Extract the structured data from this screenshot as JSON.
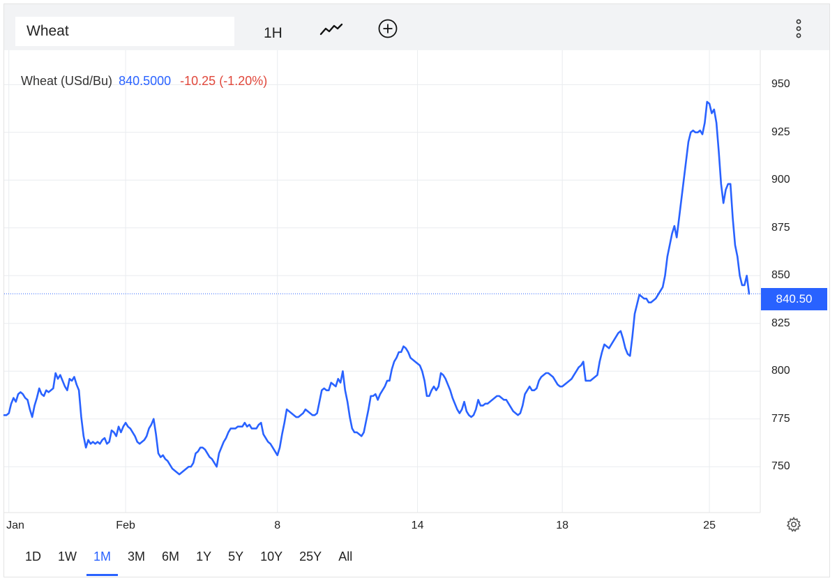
{
  "toolbar": {
    "symbol": "Wheat",
    "interval": "1H",
    "chart_type_icon": "line-chart-icon",
    "add_icon": "plus-circle-icon",
    "menu_icon": "vertical-dots-icon"
  },
  "legend": {
    "name": "Wheat (USd/Bu)",
    "value": "840.5000",
    "change": "-10.25 (-1.20%)"
  },
  "price_badge": "840.50",
  "settings_icon": "gear-icon",
  "colors": {
    "series": "#2962ff",
    "negative": "#e0473b",
    "grid": "#e9ecef",
    "toolbar_bg": "#f2f3f5"
  },
  "ranges": [
    {
      "label": "1D",
      "active": false
    },
    {
      "label": "1W",
      "active": false
    },
    {
      "label": "1M",
      "active": true
    },
    {
      "label": "3M",
      "active": false
    },
    {
      "label": "6M",
      "active": false
    },
    {
      "label": "1Y",
      "active": false
    },
    {
      "label": "5Y",
      "active": false
    },
    {
      "label": "10Y",
      "active": false
    },
    {
      "label": "25Y",
      "active": false
    },
    {
      "label": "All",
      "active": false
    }
  ],
  "chart_data": {
    "type": "line",
    "title": "",
    "xlabel": "",
    "ylabel": "",
    "grid": true,
    "ylim": [
      726,
      968
    ],
    "y_ticks": [
      750,
      775,
      800,
      825,
      850,
      875,
      900,
      925,
      950
    ],
    "x_tick_labels": [
      "Jan",
      "Feb",
      "8",
      "14",
      "18",
      "25"
    ],
    "x_tick_index": [
      2,
      52,
      117,
      177,
      239,
      302
    ],
    "last_price": 840.5,
    "series": [
      {
        "values": [
          777,
          777,
          778,
          783,
          786,
          784,
          788,
          789,
          788,
          786,
          785,
          780,
          776,
          782,
          786,
          791,
          788,
          787,
          790,
          789,
          790,
          791,
          799,
          796,
          798,
          795,
          792,
          790,
          796,
          795,
          797,
          793,
          790,
          776,
          766,
          760,
          764,
          762,
          763,
          762,
          763,
          762,
          764,
          765,
          762,
          763,
          769,
          768,
          766,
          771,
          768,
          771,
          773,
          771,
          770,
          768,
          766,
          763,
          762,
          763,
          764,
          766,
          770,
          772,
          775,
          767,
          757,
          755,
          756,
          754,
          753,
          751,
          749,
          748,
          747,
          746,
          747,
          748,
          749,
          750,
          750,
          752,
          757,
          758,
          760,
          760,
          759,
          757,
          755,
          754,
          752,
          750,
          757,
          760,
          763,
          765,
          768,
          770,
          770,
          770,
          771,
          771,
          771,
          773,
          771,
          772,
          770,
          770,
          770,
          772,
          773,
          767,
          765,
          763,
          762,
          760,
          758,
          756,
          760,
          767,
          773,
          780,
          779,
          778,
          777,
          776,
          776,
          777,
          778,
          780,
          779,
          778,
          777,
          777,
          778,
          784,
          790,
          791,
          790,
          790,
          794,
          793,
          792,
          796,
          794,
          800,
          790,
          784,
          776,
          770,
          768,
          768,
          767,
          766,
          768,
          774,
          780,
          787,
          787,
          788,
          785,
          788,
          790,
          792,
          795,
          795,
          801,
          805,
          807,
          810,
          810,
          813,
          812,
          810,
          807,
          806,
          805,
          804,
          803,
          800,
          795,
          787,
          787,
          790,
          792,
          790,
          792,
          799,
          798,
          796,
          793,
          790,
          786,
          783,
          780,
          778,
          780,
          784,
          779,
          777,
          776,
          777,
          780,
          785,
          782,
          782,
          783,
          783,
          784,
          785,
          786,
          787,
          787,
          786,
          785,
          785,
          783,
          781,
          779,
          778,
          777,
          778,
          782,
          788,
          790,
          792,
          790,
          790,
          791,
          795,
          797,
          798,
          799,
          799,
          798,
          797,
          795,
          793,
          792,
          792,
          793,
          794,
          795,
          796,
          798,
          800,
          802,
          803,
          805,
          795,
          795,
          795,
          796,
          797,
          798,
          805,
          810,
          814,
          813,
          812,
          814,
          816,
          818,
          820,
          821,
          817,
          812,
          809,
          808,
          818,
          830,
          835,
          840,
          839,
          838,
          838,
          836,
          836,
          837,
          838,
          840,
          842,
          844,
          850,
          860,
          866,
          872,
          876,
          870,
          880,
          890,
          900,
          910,
          920,
          925,
          926,
          925,
          925,
          926,
          924,
          930,
          941,
          940,
          935,
          937,
          930,
          915,
          898,
          888,
          895,
          898,
          898,
          880,
          866,
          860,
          850,
          845,
          845,
          850,
          840.5
        ]
      }
    ]
  }
}
